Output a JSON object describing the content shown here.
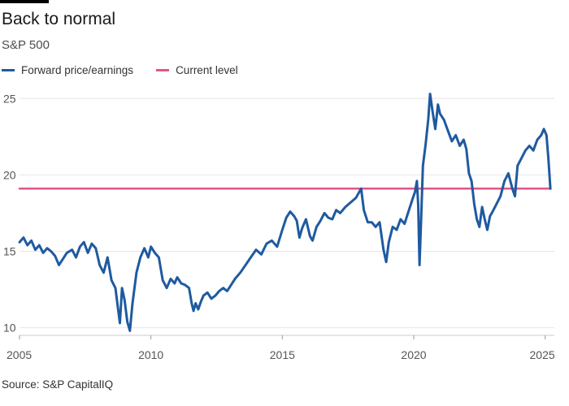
{
  "title": "Back to normal",
  "subtitle": "S&P 500",
  "source": "Source: S&P CapitalIQ",
  "legend": [
    {
      "label": "Forward price/earnings",
      "color": "#1f5aa0"
    },
    {
      "label": "Current level",
      "color": "#e0558a"
    }
  ],
  "chart_data": {
    "type": "line",
    "title": "Back to normal",
    "subtitle": "S&P 500",
    "xlabel": "",
    "ylabel": "",
    "xlim": [
      2005,
      2025.35
    ],
    "ylim": [
      9.5,
      25.6
    ],
    "x_ticks": [
      2005,
      2010,
      2015,
      2020,
      2025
    ],
    "y_ticks": [
      10,
      15,
      20,
      25
    ],
    "grid": "horizontal",
    "legend_position": "top-left",
    "series": [
      {
        "name": "Forward price/earnings",
        "color": "#1f5aa0",
        "points": [
          [
            2005.0,
            15.6
          ],
          [
            2005.15,
            15.9
          ],
          [
            2005.3,
            15.4
          ],
          [
            2005.45,
            15.7
          ],
          [
            2005.6,
            15.1
          ],
          [
            2005.75,
            15.4
          ],
          [
            2005.9,
            14.9
          ],
          [
            2006.05,
            15.2
          ],
          [
            2006.2,
            15.0
          ],
          [
            2006.35,
            14.7
          ],
          [
            2006.5,
            14.1
          ],
          [
            2006.65,
            14.5
          ],
          [
            2006.8,
            14.9
          ],
          [
            2007.0,
            15.1
          ],
          [
            2007.15,
            14.6
          ],
          [
            2007.3,
            15.3
          ],
          [
            2007.45,
            15.6
          ],
          [
            2007.6,
            14.9
          ],
          [
            2007.75,
            15.5
          ],
          [
            2007.9,
            15.2
          ],
          [
            2008.05,
            14.1
          ],
          [
            2008.2,
            13.6
          ],
          [
            2008.35,
            14.6
          ],
          [
            2008.5,
            13.1
          ],
          [
            2008.65,
            12.6
          ],
          [
            2008.75,
            11.2
          ],
          [
            2008.82,
            10.3
          ],
          [
            2008.9,
            12.6
          ],
          [
            2009.0,
            11.8
          ],
          [
            2009.1,
            10.4
          ],
          [
            2009.2,
            9.8
          ],
          [
            2009.3,
            11.6
          ],
          [
            2009.45,
            13.6
          ],
          [
            2009.6,
            14.6
          ],
          [
            2009.75,
            15.2
          ],
          [
            2009.9,
            14.6
          ],
          [
            2010.0,
            15.3
          ],
          [
            2010.15,
            14.9
          ],
          [
            2010.3,
            14.6
          ],
          [
            2010.45,
            13.1
          ],
          [
            2010.6,
            12.6
          ],
          [
            2010.75,
            13.2
          ],
          [
            2010.9,
            12.9
          ],
          [
            2011.0,
            13.3
          ],
          [
            2011.15,
            12.9
          ],
          [
            2011.3,
            12.8
          ],
          [
            2011.45,
            12.6
          ],
          [
            2011.55,
            11.6
          ],
          [
            2011.62,
            11.1
          ],
          [
            2011.7,
            11.6
          ],
          [
            2011.8,
            11.2
          ],
          [
            2011.9,
            11.7
          ],
          [
            2012.0,
            12.1
          ],
          [
            2012.15,
            12.3
          ],
          [
            2012.3,
            11.9
          ],
          [
            2012.45,
            12.1
          ],
          [
            2012.6,
            12.4
          ],
          [
            2012.75,
            12.6
          ],
          [
            2012.9,
            12.4
          ],
          [
            2013.05,
            12.8
          ],
          [
            2013.2,
            13.2
          ],
          [
            2013.4,
            13.6
          ],
          [
            2013.6,
            14.1
          ],
          [
            2013.8,
            14.6
          ],
          [
            2014.0,
            15.1
          ],
          [
            2014.2,
            14.8
          ],
          [
            2014.4,
            15.5
          ],
          [
            2014.6,
            15.7
          ],
          [
            2014.8,
            15.3
          ],
          [
            2015.0,
            16.4
          ],
          [
            2015.15,
            17.2
          ],
          [
            2015.3,
            17.6
          ],
          [
            2015.45,
            17.3
          ],
          [
            2015.55,
            17.0
          ],
          [
            2015.65,
            15.9
          ],
          [
            2015.75,
            16.5
          ],
          [
            2015.9,
            17.1
          ],
          [
            2016.05,
            16.0
          ],
          [
            2016.15,
            15.7
          ],
          [
            2016.3,
            16.6
          ],
          [
            2016.45,
            17.0
          ],
          [
            2016.6,
            17.5
          ],
          [
            2016.75,
            17.2
          ],
          [
            2016.9,
            17.1
          ],
          [
            2017.05,
            17.7
          ],
          [
            2017.2,
            17.5
          ],
          [
            2017.4,
            17.9
          ],
          [
            2017.6,
            18.2
          ],
          [
            2017.8,
            18.5
          ],
          [
            2018.0,
            19.1
          ],
          [
            2018.1,
            17.7
          ],
          [
            2018.25,
            16.9
          ],
          [
            2018.4,
            16.9
          ],
          [
            2018.55,
            16.6
          ],
          [
            2018.7,
            16.9
          ],
          [
            2018.85,
            15.1
          ],
          [
            2018.95,
            14.3
          ],
          [
            2019.05,
            15.6
          ],
          [
            2019.2,
            16.6
          ],
          [
            2019.35,
            16.4
          ],
          [
            2019.5,
            17.1
          ],
          [
            2019.65,
            16.8
          ],
          [
            2019.8,
            17.6
          ],
          [
            2019.95,
            18.4
          ],
          [
            2020.05,
            18.9
          ],
          [
            2020.12,
            19.6
          ],
          [
            2020.17,
            18.0
          ],
          [
            2020.22,
            14.1
          ],
          [
            2020.27,
            16.5
          ],
          [
            2020.35,
            20.6
          ],
          [
            2020.45,
            22.0
          ],
          [
            2020.55,
            23.6
          ],
          [
            2020.62,
            25.3
          ],
          [
            2020.72,
            24.1
          ],
          [
            2020.82,
            23.0
          ],
          [
            2020.92,
            24.6
          ],
          [
            2021.0,
            24.0
          ],
          [
            2021.15,
            23.6
          ],
          [
            2021.3,
            22.9
          ],
          [
            2021.45,
            22.2
          ],
          [
            2021.6,
            22.6
          ],
          [
            2021.75,
            21.9
          ],
          [
            2021.9,
            22.3
          ],
          [
            2022.0,
            21.7
          ],
          [
            2022.1,
            20.1
          ],
          [
            2022.2,
            19.6
          ],
          [
            2022.3,
            18.1
          ],
          [
            2022.4,
            17.1
          ],
          [
            2022.5,
            16.6
          ],
          [
            2022.6,
            17.9
          ],
          [
            2022.7,
            17.1
          ],
          [
            2022.8,
            16.4
          ],
          [
            2022.9,
            17.3
          ],
          [
            2023.0,
            17.6
          ],
          [
            2023.15,
            18.1
          ],
          [
            2023.3,
            18.6
          ],
          [
            2023.45,
            19.6
          ],
          [
            2023.6,
            20.1
          ],
          [
            2023.75,
            19.1
          ],
          [
            2023.85,
            18.6
          ],
          [
            2023.95,
            20.6
          ],
          [
            2024.1,
            21.1
          ],
          [
            2024.25,
            21.6
          ],
          [
            2024.4,
            21.9
          ],
          [
            2024.55,
            21.6
          ],
          [
            2024.7,
            22.3
          ],
          [
            2024.85,
            22.6
          ],
          [
            2024.95,
            23.0
          ],
          [
            2025.05,
            22.6
          ],
          [
            2025.12,
            21.1
          ],
          [
            2025.2,
            19.1
          ]
        ]
      },
      {
        "name": "Current level",
        "color": "#e0558a",
        "points": [
          [
            2005.0,
            19.1
          ],
          [
            2025.2,
            19.1
          ]
        ]
      }
    ]
  }
}
